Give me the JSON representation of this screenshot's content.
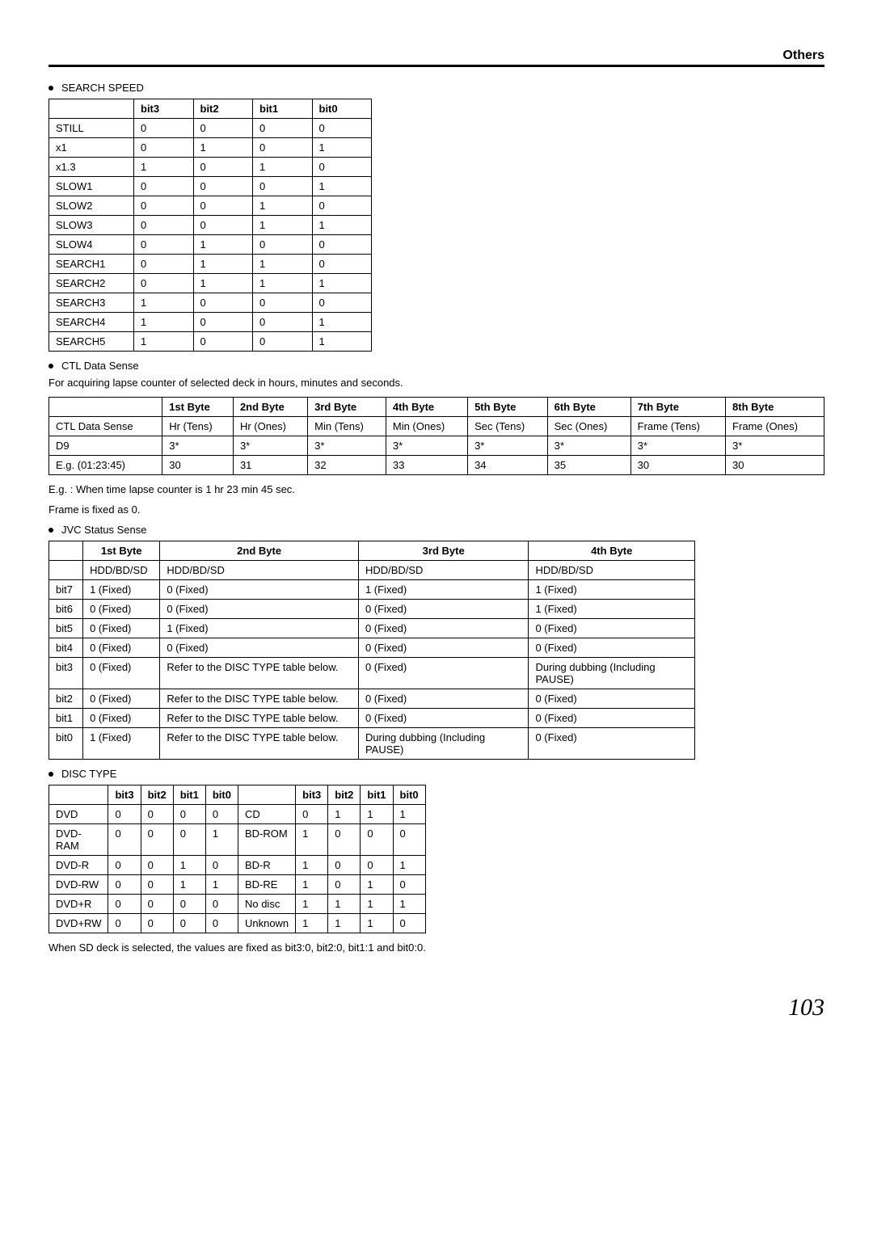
{
  "header": {
    "title": "Others"
  },
  "sections": {
    "search_speed": {
      "heading": "SEARCH SPEED",
      "columns": [
        "",
        "bit3",
        "bit2",
        "bit1",
        "bit0"
      ],
      "rows": [
        [
          "STILL",
          "0",
          "0",
          "0",
          "0"
        ],
        [
          "x1",
          "0",
          "1",
          "0",
          "1"
        ],
        [
          "x1.3",
          "1",
          "0",
          "1",
          "0"
        ],
        [
          "SLOW1",
          "0",
          "0",
          "0",
          "1"
        ],
        [
          "SLOW2",
          "0",
          "0",
          "1",
          "0"
        ],
        [
          "SLOW3",
          "0",
          "0",
          "1",
          "1"
        ],
        [
          "SLOW4",
          "0",
          "1",
          "0",
          "0"
        ],
        [
          "SEARCH1",
          "0",
          "1",
          "1",
          "0"
        ],
        [
          "SEARCH2",
          "0",
          "1",
          "1",
          "1"
        ],
        [
          "SEARCH3",
          "1",
          "0",
          "0",
          "0"
        ],
        [
          "SEARCH4",
          "1",
          "0",
          "0",
          "1"
        ],
        [
          "SEARCH5",
          "1",
          "0",
          "0",
          "1"
        ]
      ]
    },
    "ctl": {
      "heading": "CTL Data Sense",
      "desc": "For acquiring lapse counter of selected deck in hours, minutes and seconds.",
      "columns": [
        "",
        "1st Byte",
        "2nd Byte",
        "3rd Byte",
        "4th Byte",
        "5th Byte",
        "6th Byte",
        "7th Byte",
        "8th Byte"
      ],
      "rows": [
        [
          "CTL Data Sense",
          "Hr (Tens)",
          "Hr (Ones)",
          "Min (Tens)",
          "Min (Ones)",
          "Sec (Tens)",
          "Sec (Ones)",
          "Frame (Tens)",
          "Frame (Ones)"
        ],
        [
          "D9",
          "3*",
          "3*",
          "3*",
          "3*",
          "3*",
          "3*",
          "3*",
          "3*"
        ],
        [
          "E.g. (01:23:45)",
          "30",
          "31",
          "32",
          "33",
          "34",
          "35",
          "30",
          "30"
        ]
      ],
      "eg_line1": "E.g. :   When time lapse counter is 1 hr 23 min 45 sec.",
      "eg_line2": "Frame is fixed as 0."
    },
    "jvc": {
      "heading": "JVC Status Sense",
      "columns": [
        "",
        "1st Byte",
        "2nd Byte",
        "3rd Byte",
        "4th Byte"
      ],
      "rows": [
        [
          "",
          "HDD/BD/SD",
          "HDD/BD/SD",
          "HDD/BD/SD",
          "HDD/BD/SD"
        ],
        [
          "bit7",
          "1 (Fixed)",
          "0 (Fixed)",
          "1 (Fixed)",
          "1 (Fixed)"
        ],
        [
          "bit6",
          "0 (Fixed)",
          "0 (Fixed)",
          "0 (Fixed)",
          "1 (Fixed)"
        ],
        [
          "bit5",
          "0 (Fixed)",
          "1 (Fixed)",
          "0 (Fixed)",
          "0 (Fixed)"
        ],
        [
          "bit4",
          "0 (Fixed)",
          "0 (Fixed)",
          "0 (Fixed)",
          "0 (Fixed)"
        ],
        [
          "bit3",
          "0 (Fixed)",
          "Refer to the DISC TYPE table below.",
          "0 (Fixed)",
          "During dubbing (Including PAUSE)"
        ],
        [
          "bit2",
          "0 (Fixed)",
          "Refer to the DISC TYPE table below.",
          "0 (Fixed)",
          "0 (Fixed)"
        ],
        [
          "bit1",
          "0 (Fixed)",
          "Refer to the DISC TYPE table below.",
          "0 (Fixed)",
          "0 (Fixed)"
        ],
        [
          "bit0",
          "1 (Fixed)",
          "Refer to the DISC TYPE table below.",
          "During dubbing (Including PAUSE)",
          "0 (Fixed)"
        ]
      ]
    },
    "disc": {
      "heading": "DISC TYPE",
      "columns": [
        "",
        "bit3",
        "bit2",
        "bit1",
        "bit0",
        "",
        "bit3",
        "bit2",
        "bit1",
        "bit0"
      ],
      "rows": [
        [
          "DVD",
          "0",
          "0",
          "0",
          "0",
          "CD",
          "0",
          "1",
          "1",
          "1"
        ],
        [
          "DVD-RAM",
          "0",
          "0",
          "0",
          "1",
          "BD-ROM",
          "1",
          "0",
          "0",
          "0"
        ],
        [
          "DVD-R",
          "0",
          "0",
          "1",
          "0",
          "BD-R",
          "1",
          "0",
          "0",
          "1"
        ],
        [
          "DVD-RW",
          "0",
          "0",
          "1",
          "1",
          "BD-RE",
          "1",
          "0",
          "1",
          "0"
        ],
        [
          "DVD+R",
          "0",
          "0",
          "0",
          "0",
          "No disc",
          "1",
          "1",
          "1",
          "1"
        ],
        [
          "DVD+RW",
          "0",
          "0",
          "0",
          "0",
          "Unknown",
          "1",
          "1",
          "1",
          "0"
        ]
      ],
      "footnote": "When SD deck is selected, the values are fixed as bit3:0, bit2:0, bit1:1 and bit0:0."
    }
  },
  "page_number": "103"
}
